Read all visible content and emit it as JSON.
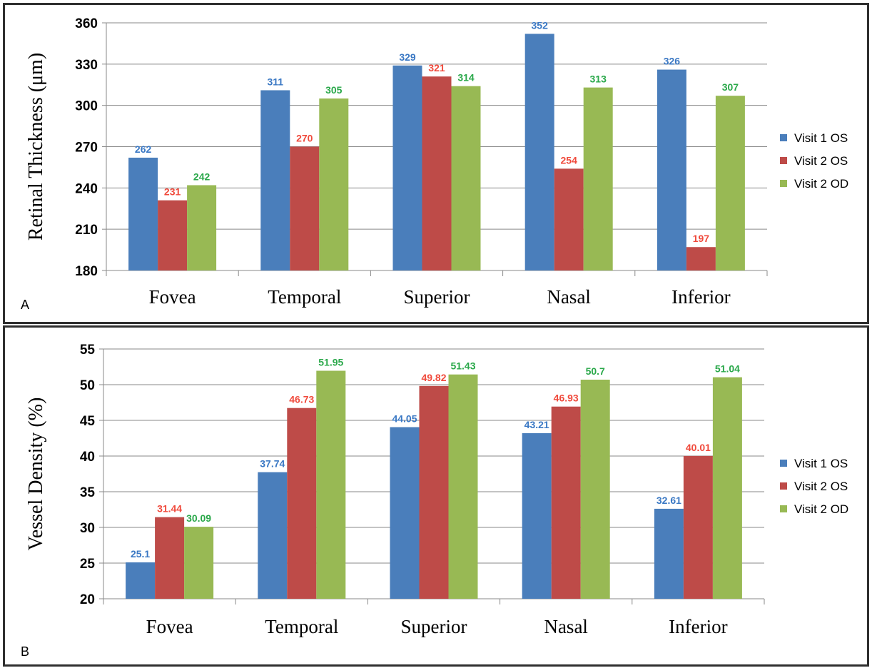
{
  "panels": [
    {
      "letter": "A"
    },
    {
      "letter": "B"
    }
  ],
  "chart_data": [
    {
      "type": "bar",
      "title": "",
      "xlabel": "",
      "ylabel": "Retinal Thickness (μm)",
      "categories": [
        "Fovea",
        "Temporal",
        "Superior",
        "Nasal",
        "Inferior"
      ],
      "ylim": [
        180,
        360
      ],
      "yticks": [
        180,
        210,
        240,
        270,
        300,
        330,
        360
      ],
      "grid": true,
      "legend": "right",
      "series": [
        {
          "name": "Visit 1 OS",
          "color": "#4a7ebb",
          "label_color": "#3a78c4",
          "values": [
            262,
            311,
            329,
            352,
            326
          ]
        },
        {
          "name": "Visit 2 OS",
          "color": "#be4b48",
          "label_color": "#f04a3c",
          "values": [
            231,
            270,
            321,
            254,
            197
          ]
        },
        {
          "name": "Visit 2 OD",
          "color": "#98b954",
          "label_color": "#2aa84a",
          "values": [
            242,
            305,
            314,
            313,
            307
          ]
        }
      ]
    },
    {
      "type": "bar",
      "title": "",
      "xlabel": "",
      "ylabel": "Vessel Density (%)",
      "categories": [
        "Fovea",
        "Temporal",
        "Superior",
        "Nasal",
        "Inferior"
      ],
      "ylim": [
        20,
        55
      ],
      "yticks": [
        20,
        25,
        30,
        35,
        40,
        45,
        50,
        55
      ],
      "grid": true,
      "legend": "right",
      "series": [
        {
          "name": "Visit 1 OS",
          "color": "#4a7ebb",
          "label_color": "#3a78c4",
          "values": [
            "25.1",
            "37.74",
            "44.05",
            "43.21",
            "32.61"
          ]
        },
        {
          "name": "Visit 2 OS",
          "color": "#be4b48",
          "label_color": "#f04a3c",
          "values": [
            "31.44",
            "46.73",
            "49.82",
            "46.93",
            "40.01"
          ]
        },
        {
          "name": "Visit 2 OD",
          "color": "#98b954",
          "label_color": "#2aa84a",
          "values": [
            "30.09",
            "51.95",
            "51.43",
            "50.7",
            "51.04"
          ]
        }
      ]
    }
  ]
}
